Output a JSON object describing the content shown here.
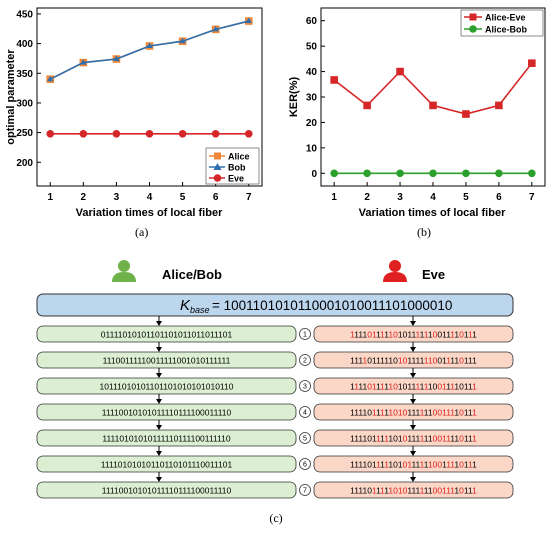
{
  "chart_data": [
    {
      "type": "line",
      "panel_label": "(a)",
      "xlabel": "Variation times of local fiber",
      "ylabel": "optimal parameter",
      "xlim": [
        0.6,
        7.4
      ],
      "ylim": [
        160,
        460
      ],
      "xticks": [
        "1",
        "2",
        "3",
        "4",
        "5",
        "6",
        "7"
      ],
      "yticks": [
        "200",
        "250",
        "300",
        "350",
        "400",
        "450"
      ],
      "x": [
        1,
        2,
        3,
        4,
        5,
        6,
        7
      ],
      "series": [
        {
          "name": "Alice",
          "values": [
            340,
            368,
            374,
            396,
            404,
            424,
            438
          ],
          "color": "#f0883a",
          "marker": "square"
        },
        {
          "name": "Bob",
          "values": [
            340,
            368,
            374,
            396,
            404,
            424,
            438
          ],
          "color": "#2e6fb0",
          "marker": "triangle"
        },
        {
          "name": "Eve",
          "values": [
            248,
            248,
            248,
            248,
            248,
            248,
            248
          ],
          "color": "#d62728",
          "marker": "circle"
        }
      ],
      "legend": "bottom-right"
    },
    {
      "type": "line",
      "panel_label": "(b)",
      "xlabel": "Variation times of local fiber",
      "ylabel": "KER(%)",
      "xlim": [
        0.6,
        7.4
      ],
      "ylim": [
        -5,
        65
      ],
      "xticks": [
        "1",
        "2",
        "3",
        "4",
        "5",
        "6",
        "7"
      ],
      "yticks": [
        "0",
        "10",
        "20",
        "30",
        "40",
        "50",
        "60"
      ],
      "x": [
        1,
        2,
        3,
        4,
        5,
        6,
        7
      ],
      "series": [
        {
          "name": "Alice-Eve",
          "values": [
            36.7,
            26.7,
            40.0,
            26.7,
            23.3,
            26.7,
            43.3
          ],
          "color": "#d62728",
          "marker": "square"
        },
        {
          "name": "Alice-Bob",
          "values": [
            0,
            0,
            0,
            0,
            0,
            0,
            0
          ],
          "color": "#2ca02c",
          "marker": "circle"
        }
      ],
      "legend": "top-right"
    }
  ],
  "diagram": {
    "panel_label": "(c)",
    "left_title": "Alice/Bob",
    "right_title": "Eve",
    "base_label_k": "K",
    "base_label_sub": "base",
    "base_value": "= 1001101010110001010011101000010",
    "left_rows": [
      "01111010101101101011011011101",
      "11100111110011111001010111111",
      "10111010101101101010101010110",
      "11110010101011110111100011110",
      "11110101010111110111100111110",
      "11110101010110110101110011101",
      "11110010101011110111100011110"
    ],
    "row_numbers": [
      "1",
      "2",
      "3",
      "4",
      "5",
      "6",
      "7"
    ],
    "right_rows": [
      "11110111110101111110011110111",
      "11110111110101111110011110111",
      "11110111110101111110011110111",
      "11110111110101111110011110111",
      "11110111110101111110011110111",
      "11110111110101111110011110111",
      "11110111110101111110011110111"
    ],
    "colors": {
      "base_fill": "#bcd6ee",
      "left_fill": "#dcefd2",
      "right_fill": "#fbd7c8",
      "mismatch_text": "#e0201b",
      "alice_icon": "#6fb24a",
      "eve_icon": "#e02020"
    },
    "icons": {
      "left": "person-icon",
      "right": "person-icon"
    }
  }
}
